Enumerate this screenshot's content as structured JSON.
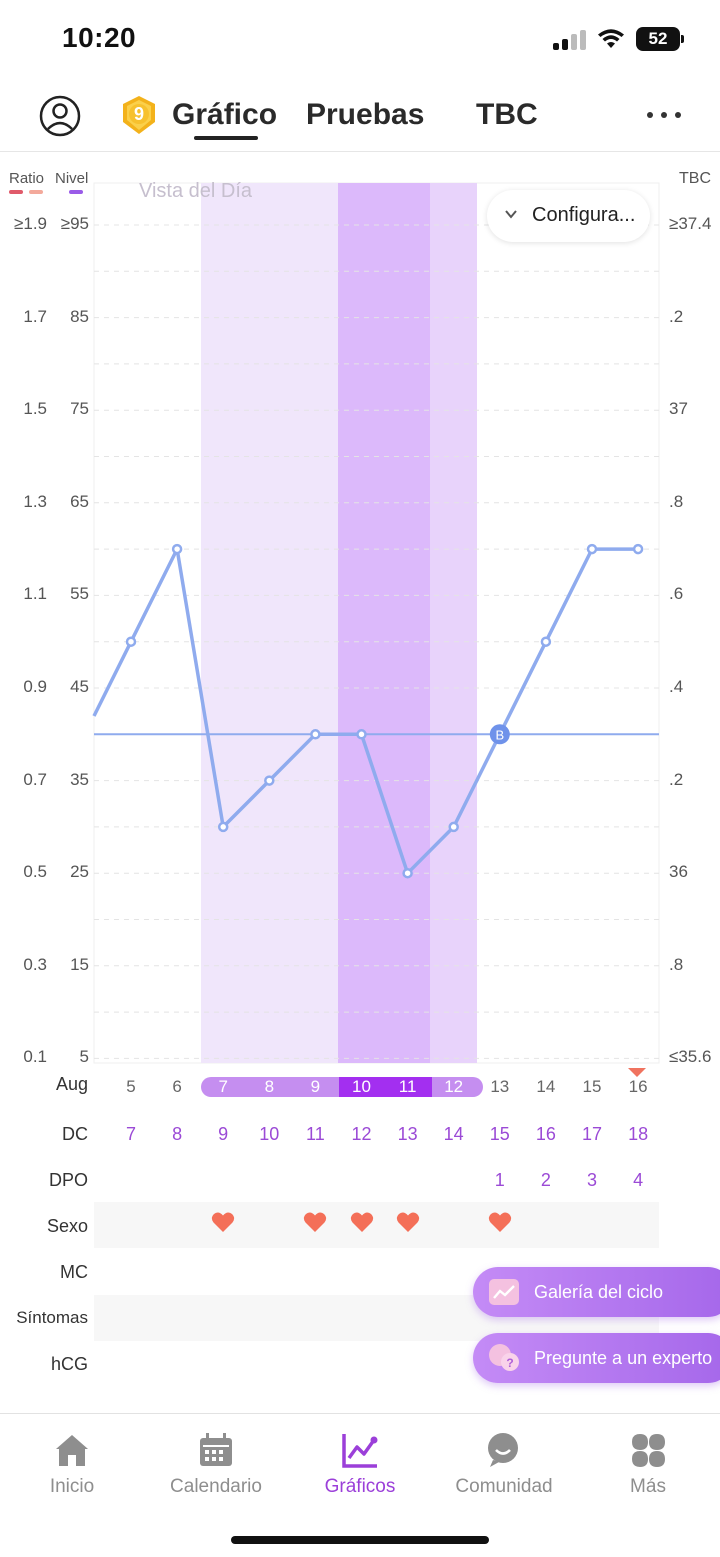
{
  "status_bar": {
    "time": "10:20",
    "battery": "52"
  },
  "header": {
    "level_badge": "9",
    "tabs": [
      {
        "label": "Gráfico",
        "active": true
      },
      {
        "label": "Pruebas",
        "active": false
      },
      {
        "label": "TBC",
        "active": false
      }
    ]
  },
  "chart": {
    "legend": {
      "ratio_label": "Ratio",
      "nivel_label": "Nivel",
      "tbc_label": "TBC"
    },
    "view_label": "Vista del Día",
    "config_label": "Configura...",
    "ratio_ticks": [
      "≥1.9",
      "1.7",
      "1.5",
      "1.3",
      "1.1",
      "0.9",
      "0.7",
      "0.5",
      "0.3",
      "0.1"
    ],
    "nivel_ticks": [
      "≥95",
      "85",
      "75",
      "65",
      "55",
      "45",
      "35",
      "25",
      "15",
      "5"
    ],
    "tbc_ticks": [
      "≥37.4",
      ".2",
      "37",
      ".8",
      ".6",
      ".4",
      ".2",
      "36",
      ".8",
      "≤35.6"
    ],
    "colors": {
      "line": "#8fabee",
      "fertile_light": "#f0e6fb",
      "fertile_dark": "#dcb9fb",
      "baseline": "#8fabee"
    }
  },
  "chart_data": {
    "type": "line",
    "ylabel": "Nivel",
    "ylim": [
      5,
      95
    ],
    "x": [
      "5",
      "6",
      "7",
      "8",
      "9",
      "10",
      "11",
      "12",
      "13",
      "14",
      "15",
      "16"
    ],
    "series": [
      {
        "values": [
          50,
          60,
          30,
          35,
          40,
          40,
          25,
          30,
          40,
          50,
          60,
          60
        ]
      }
    ],
    "coverline": 40,
    "coverline_marker": "B",
    "coverline_marker_x": "13"
  },
  "rows": {
    "month_label": "Aug",
    "dates": [
      "5",
      "6",
      "7",
      "8",
      "9",
      "10",
      "11",
      "12",
      "13",
      "14",
      "15",
      "16"
    ],
    "dc_label": "DC",
    "dc_values": [
      "7",
      "8",
      "9",
      "10",
      "11",
      "12",
      "13",
      "14",
      "15",
      "16",
      "17",
      "18"
    ],
    "dpo_label": "DPO",
    "dpo_values": [
      "",
      "",
      "",
      "",
      "",
      "",
      "",
      "",
      "1",
      "2",
      "3",
      "4"
    ],
    "sexo_label": "Sexo",
    "mc_label": "MC",
    "sintomas_label": "Síntomas",
    "hcg_label": "hCG"
  },
  "floating_buttons": {
    "gallery": "Galería del ciclo",
    "ask_expert": "Pregunte a un experto"
  },
  "bottom_nav": [
    {
      "label": "Inicio",
      "icon": "home-icon",
      "active": false
    },
    {
      "label": "Calendario",
      "icon": "calendar-icon",
      "active": false
    },
    {
      "label": "Gráficos",
      "icon": "chart-icon",
      "active": true
    },
    {
      "label": "Comunidad",
      "icon": "community-icon",
      "active": false
    },
    {
      "label": "Más",
      "icon": "more-apps-icon",
      "active": false
    }
  ]
}
